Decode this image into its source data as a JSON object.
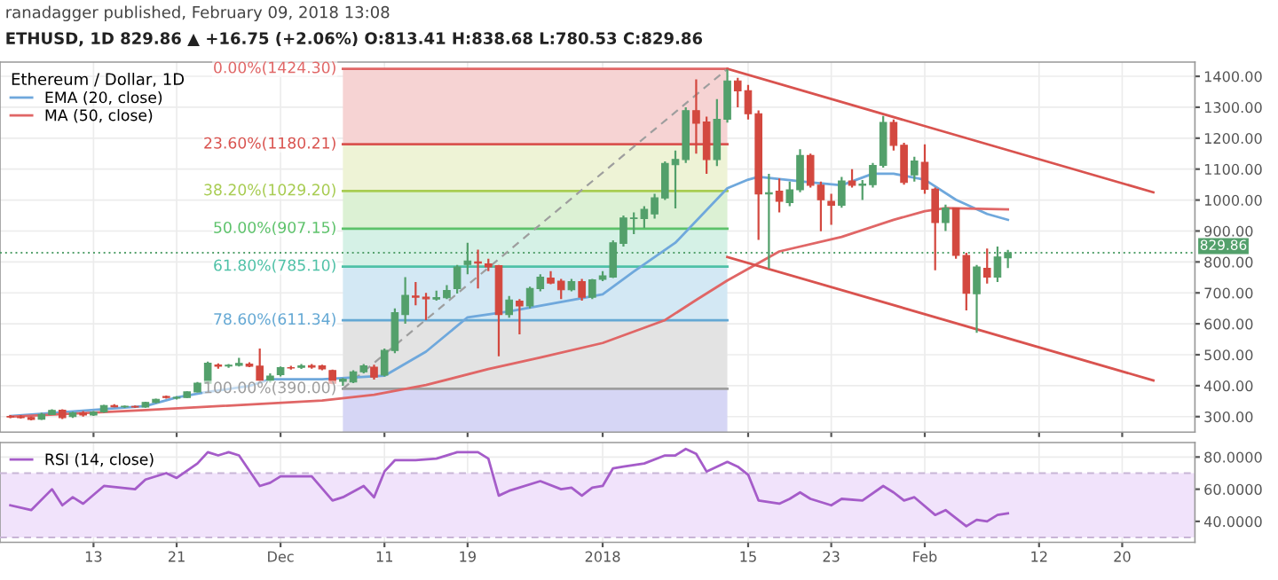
{
  "chart_data": [
    {
      "type": "candlestick",
      "title": "ranadagger published, February 09, 2018 13:08",
      "subtitle": "ETHUSD, 1D 829.86 ▲ +16.75 (+2.06%) O:813.41 H:838.68 L:780.53 C:829.86",
      "legend_title": "Ethereum / Dollar, 1D",
      "x": [
        "2017-11-05",
        "2017-11-06",
        "2017-11-07",
        "2017-11-08",
        "2017-11-09",
        "2017-11-10",
        "2017-11-11",
        "2017-11-12",
        "2017-11-13",
        "2017-11-14",
        "2017-11-15",
        "2017-11-16",
        "2017-11-17",
        "2017-11-18",
        "2017-11-19",
        "2017-11-20",
        "2017-11-21",
        "2017-11-22",
        "2017-11-23",
        "2017-11-24",
        "2017-11-25",
        "2017-11-26",
        "2017-11-27",
        "2017-11-28",
        "2017-11-29",
        "2017-11-30",
        "2017-12-01",
        "2017-12-02",
        "2017-12-03",
        "2017-12-04",
        "2017-12-05",
        "2017-12-06",
        "2017-12-07",
        "2017-12-08",
        "2017-12-09",
        "2017-12-10",
        "2017-12-11",
        "2017-12-12",
        "2017-12-13",
        "2017-12-14",
        "2017-12-15",
        "2017-12-16",
        "2017-12-17",
        "2017-12-18",
        "2017-12-19",
        "2017-12-20",
        "2017-12-21",
        "2017-12-22",
        "2017-12-23",
        "2017-12-24",
        "2017-12-25",
        "2017-12-26",
        "2017-12-27",
        "2017-12-28",
        "2017-12-29",
        "2017-12-30",
        "2017-12-31",
        "2018-01-01",
        "2018-01-02",
        "2018-01-03",
        "2018-01-04",
        "2018-01-05",
        "2018-01-06",
        "2018-01-07",
        "2018-01-08",
        "2018-01-09",
        "2018-01-10",
        "2018-01-11",
        "2018-01-12",
        "2018-01-13",
        "2018-01-14",
        "2018-01-15",
        "2018-01-16",
        "2018-01-17",
        "2018-01-18",
        "2018-01-19",
        "2018-01-20",
        "2018-01-21",
        "2018-01-22",
        "2018-01-23",
        "2018-01-24",
        "2018-01-25",
        "2018-01-26",
        "2018-01-27",
        "2018-01-28",
        "2018-01-29",
        "2018-01-30",
        "2018-01-31",
        "2018-02-01",
        "2018-02-02",
        "2018-02-03",
        "2018-02-04",
        "2018-02-05",
        "2018-02-06",
        "2018-02-07",
        "2018-02-08",
        "2018-02-09"
      ],
      "ohlc": [
        [
          300,
          305,
          295,
          299
        ],
        [
          299,
          305,
          294,
          297
        ],
        [
          297,
          300,
          288,
          291
        ],
        [
          292,
          312,
          289,
          307
        ],
        [
          307,
          324,
          305,
          320
        ],
        [
          321,
          324,
          292,
          297
        ],
        [
          300,
          316,
          296,
          312
        ],
        [
          312,
          318,
          300,
          305
        ],
        [
          305,
          318,
          302,
          314
        ],
        [
          315,
          338,
          312,
          336
        ],
        [
          336,
          340,
          330,
          332
        ],
        [
          332,
          336,
          328,
          333
        ],
        [
          333,
          336,
          328,
          331
        ],
        [
          331,
          348,
          329,
          346
        ],
        [
          346,
          358,
          343,
          356
        ],
        [
          365,
          368,
          358,
          362
        ],
        [
          360,
          366,
          355,
          362
        ],
        [
          362,
          382,
          360,
          380
        ],
        [
          380,
          412,
          378,
          408
        ],
        [
          408,
          478,
          405,
          473
        ],
        [
          467,
          472,
          455,
          463
        ],
        [
          464,
          470,
          458,
          466
        ],
        [
          466,
          490,
          462,
          472
        ],
        [
          470,
          476,
          460,
          463
        ],
        [
          463,
          520,
          415,
          417
        ],
        [
          417,
          440,
          410,
          431
        ],
        [
          436,
          462,
          430,
          458
        ],
        [
          458,
          464,
          452,
          457
        ],
        [
          459,
          470,
          454,
          464
        ],
        [
          465,
          470,
          455,
          460
        ],
        [
          464,
          468,
          450,
          454
        ],
        [
          449,
          452,
          405,
          408
        ],
        [
          414,
          425,
          400,
          421
        ],
        [
          412,
          450,
          408,
          445
        ],
        [
          445,
          470,
          440,
          464
        ],
        [
          460,
          468,
          420,
          428
        ],
        [
          434,
          520,
          430,
          514
        ],
        [
          514,
          650,
          505,
          636
        ],
        [
          630,
          751,
          600,
          692
        ],
        [
          690,
          735,
          660,
          686
        ],
        [
          686,
          700,
          612,
          681
        ],
        [
          680,
          707,
          675,
          685
        ],
        [
          684,
          725,
          680,
          708
        ],
        [
          714,
          790,
          698,
          784
        ],
        [
          792,
          862,
          760,
          803
        ],
        [
          800,
          840,
          714,
          796
        ],
        [
          794,
          810,
          770,
          784
        ],
        [
          788,
          790,
          495,
          630
        ],
        [
          630,
          690,
          620,
          677
        ],
        [
          673,
          680,
          566,
          658
        ],
        [
          658,
          720,
          650,
          714
        ],
        [
          714,
          760,
          705,
          751
        ],
        [
          748,
          770,
          728,
          732
        ],
        [
          738,
          745,
          680,
          710
        ],
        [
          710,
          745,
          705,
          736
        ],
        [
          736,
          745,
          675,
          686
        ],
        [
          686,
          745,
          680,
          742
        ],
        [
          744,
          770,
          738,
          755
        ],
        [
          751,
          870,
          748,
          862
        ],
        [
          860,
          950,
          850,
          942
        ],
        [
          940,
          960,
          890,
          942
        ],
        [
          940,
          980,
          910,
          970
        ],
        [
          955,
          1020,
          940,
          1007
        ],
        [
          1007,
          1125,
          1000,
          1118
        ],
        [
          1114,
          1160,
          973,
          1131
        ],
        [
          1131,
          1300,
          1120,
          1289
        ],
        [
          1289,
          1390,
          1150,
          1248
        ],
        [
          1252,
          1270,
          1085,
          1131
        ],
        [
          1131,
          1326,
          1110,
          1261
        ],
        [
          1261,
          1422,
          1250,
          1385
        ],
        [
          1385,
          1395,
          1300,
          1353
        ],
        [
          1353,
          1372,
          1260,
          1279
        ],
        [
          1279,
          1290,
          871,
          1020
        ],
        [
          1020,
          1085,
          779,
          1024
        ],
        [
          1029,
          1070,
          960,
          996
        ],
        [
          992,
          1060,
          980,
          1033
        ],
        [
          1033,
          1164,
          1025,
          1144
        ],
        [
          1144,
          1150,
          1040,
          1048
        ],
        [
          1048,
          1060,
          899,
          1001
        ],
        [
          996,
          1020,
          920,
          983
        ],
        [
          983,
          1075,
          975,
          1062
        ],
        [
          1062,
          1100,
          1040,
          1048
        ],
        [
          1048,
          1065,
          1000,
          1052
        ],
        [
          1050,
          1120,
          1040,
          1112
        ],
        [
          1112,
          1272,
          1105,
          1251
        ],
        [
          1251,
          1260,
          1160,
          1177
        ],
        [
          1177,
          1185,
          1050,
          1057
        ],
        [
          1081,
          1140,
          1060,
          1126
        ],
        [
          1122,
          1180,
          1020,
          1035
        ],
        [
          1035,
          1040,
          773,
          927
        ],
        [
          927,
          985,
          900,
          974
        ],
        [
          974,
          975,
          810,
          821
        ],
        [
          821,
          830,
          643,
          699
        ],
        [
          697,
          790,
          571,
          784
        ],
        [
          779,
          843,
          730,
          751
        ],
        [
          751,
          850,
          735,
          816
        ],
        [
          813.41,
          838.68,
          780.53,
          829.86
        ]
      ],
      "colors": [
        "#d3483f",
        "#d3483f",
        "#d3483f",
        "#53a06b",
        "#53a06b",
        "#d3483f",
        "#53a06b",
        "#d3483f",
        "#53a06b",
        "#53a06b",
        "#d3483f",
        "#53a06b",
        "#d3483f",
        "#53a06b",
        "#53a06b",
        "#d3483f",
        "#53a06b",
        "#53a06b",
        "#53a06b",
        "#53a06b",
        "#d3483f",
        "#53a06b",
        "#53a06b",
        "#d3483f",
        "#d3483f",
        "#53a06b",
        "#53a06b",
        "#d3483f",
        "#53a06b",
        "#d3483f",
        "#d3483f",
        "#d3483f",
        "#53a06b",
        "#53a06b",
        "#53a06b",
        "#d3483f",
        "#53a06b",
        "#53a06b",
        "#53a06b",
        "#d3483f",
        "#d3483f",
        "#53a06b",
        "#53a06b",
        "#53a06b",
        "#53a06b",
        "#d3483f",
        "#d3483f",
        "#d3483f",
        "#53a06b",
        "#d3483f",
        "#53a06b",
        "#53a06b",
        "#d3483f",
        "#d3483f",
        "#53a06b",
        "#d3483f",
        "#53a06b",
        "#53a06b",
        "#53a06b",
        "#53a06b",
        "#53a06b",
        "#53a06b",
        "#53a06b",
        "#53a06b",
        "#53a06b",
        "#53a06b",
        "#d3483f",
        "#d3483f",
        "#53a06b",
        "#53a06b",
        "#d3483f",
        "#d3483f",
        "#d3483f",
        "#53a06b",
        "#d3483f",
        "#53a06b",
        "#53a06b",
        "#d3483f",
        "#d3483f",
        "#d3483f",
        "#53a06b",
        "#d3483f",
        "#53a06b",
        "#53a06b",
        "#53a06b",
        "#d3483f",
        "#d3483f",
        "#53a06b",
        "#d3483f",
        "#d3483f",
        "#53a06b",
        "#d3483f",
        "#d3483f",
        "#53a06b",
        "#d3483f",
        "#53a06b",
        "#53a06b"
      ],
      "series": [
        {
          "type": "line",
          "name": "EMA (20, close)",
          "color": "#6fa8dc",
          "x": [
            "2017-11-05",
            "2017-11-18",
            "2017-11-21",
            "2017-11-24",
            "2017-11-28",
            "2017-11-30",
            "2017-12-05",
            "2017-12-11",
            "2017-12-15",
            "2017-12-19",
            "2017-12-23",
            "2017-12-29",
            "2018-01-01",
            "2018-01-04",
            "2018-01-08",
            "2018-01-13",
            "2018-01-15",
            "2018-01-16",
            "2018-01-21",
            "2018-01-24",
            "2018-01-27",
            "2018-01-29",
            "2018-02-01",
            "2018-02-04",
            "2018-02-07",
            "2018-02-09"
          ],
          "values": [
            302,
            334,
            362,
            380,
            399,
            421,
            421,
            432,
            510,
            621,
            640,
            677,
            695,
            769,
            862,
            1038,
            1066,
            1075,
            1057,
            1048,
            1085,
            1085,
            1066,
            1001,
            955,
            936
          ]
        },
        {
          "type": "line",
          "name": "MA (50, close)",
          "color": "#e06666",
          "x": [
            "2017-11-05",
            "2017-11-18",
            "2017-12-05",
            "2017-12-10",
            "2017-12-15",
            "2017-12-21",
            "2017-12-26",
            "2018-01-01",
            "2018-01-07",
            "2018-01-10",
            "2018-01-13",
            "2018-01-18",
            "2018-01-24",
            "2018-01-29",
            "2018-02-01",
            "2018-02-03",
            "2018-02-09"
          ],
          "values": [
            300,
            321,
            352,
            371,
            402,
            454,
            491,
            538,
            612,
            677,
            740,
            834,
            881,
            936,
            964,
            974,
            970
          ]
        },
        {
          "type": "line",
          "color": "#d9534f",
          "x": [
            "2018-01-13",
            "2018-02-23"
          ],
          "values": [
            1424,
            1025
          ]
        },
        {
          "type": "line",
          "color": "#d9534f",
          "x": [
            "2018-01-13",
            "2018-02-23"
          ],
          "values": [
            816,
            417
          ]
        },
        {
          "type": "line",
          "color": "#9e9e9e",
          "line_style": "dashed",
          "x": [
            "2017-12-07",
            "2018-01-13"
          ],
          "values": [
            390,
            1424
          ]
        }
      ],
      "bands": [
        {
          "axis": "y",
          "from": 1180.21,
          "to": 1424.3,
          "color": "#f6d3d3"
        },
        {
          "axis": "y",
          "from": 1029.2,
          "to": 1180.21,
          "color": "#eef3d6"
        },
        {
          "axis": "y",
          "from": 907.15,
          "to": 1029.2,
          "color": "#dcf1d4"
        },
        {
          "axis": "y",
          "from": 785.1,
          "to": 907.15,
          "color": "#d5f1e6"
        },
        {
          "axis": "y",
          "from": 611.34,
          "to": 785.1,
          "color": "#d3e8f4"
        },
        {
          "axis": "y",
          "from": 390,
          "to": 611.34,
          "color": "#e3e3e3"
        },
        {
          "axis": "y",
          "from": 250,
          "to": 390,
          "color": "#d6d6f5"
        }
      ],
      "ref_lines": [
        {
          "axis": "y",
          "value": 1424.3,
          "label": "0.00%(1424.30)",
          "color": "#e06666"
        },
        {
          "axis": "y",
          "value": 1180.21,
          "label": "23.60%(1180.21)",
          "color": "#d9534f"
        },
        {
          "axis": "y",
          "value": 1029.2,
          "label": "38.20%(1029.20)",
          "color": "#a8cc52"
        },
        {
          "axis": "y",
          "value": 907.15,
          "label": "50.00%(907.15)",
          "color": "#5cc26a"
        },
        {
          "axis": "y",
          "value": 785.1,
          "label": "61.80%(785.10)",
          "color": "#4fc1a7"
        },
        {
          "axis": "y",
          "value": 611.34,
          "label": "78.60%(611.34)",
          "color": "#64a8d4"
        },
        {
          "axis": "y",
          "value": 390,
          "label": "100.00%(390.00)",
          "color": "#9e9e9e"
        },
        {
          "axis": "y",
          "value": 829.86,
          "label": "829.86",
          "color": "#53a06b",
          "line_style": "dotted"
        }
      ],
      "xlim": [
        "2017-11-04",
        "2018-02-27"
      ],
      "xticks": [
        {
          "value": "2017-11-13",
          "label": null
        },
        {
          "value": "2017-11-21",
          "label": null
        },
        {
          "value": "2017-12-01",
          "label": null
        },
        {
          "value": "2017-12-11",
          "label": null
        },
        {
          "value": "2017-12-19",
          "label": null
        },
        {
          "value": "2018-01-01",
          "label": null
        },
        {
          "value": "2018-01-15",
          "label": null
        },
        {
          "value": "2018-01-23",
          "label": null
        },
        {
          "value": "2018-02-01",
          "label": null
        },
        {
          "value": "2018-02-12",
          "label": null
        },
        {
          "value": "2018-02-20",
          "label": null
        }
      ],
      "ylim": [
        250,
        1446
      ],
      "yticks": [
        {
          "value": 300,
          "label": "300.00"
        },
        {
          "value": 400,
          "label": "400.00"
        },
        {
          "value": 500,
          "label": "500.00"
        },
        {
          "value": 600,
          "label": "600.00"
        },
        {
          "value": 700,
          "label": "700.00"
        },
        {
          "value": 800,
          "label": "800.00"
        },
        {
          "value": 900,
          "label": "900.00"
        },
        {
          "value": 1000,
          "label": "1000.00"
        },
        {
          "value": 1100,
          "label": "1100.00"
        },
        {
          "value": 1200,
          "label": "1200.00"
        },
        {
          "value": 1300,
          "label": "1300.00"
        },
        {
          "value": 1400,
          "label": "1400.00"
        }
      ],
      "tick_labels": "y",
      "grid": true,
      "legend": "top left"
    },
    {
      "type": "line",
      "series": [
        {
          "name": "RSI (14, close)",
          "color": "#a55cc9",
          "x": [
            "2017-11-05",
            "2017-11-07",
            "2017-11-09",
            "2017-11-10",
            "2017-11-11",
            "2017-11-12",
            "2017-11-14",
            "2017-11-17",
            "2017-11-18",
            "2017-11-20",
            "2017-11-21",
            "2017-11-23",
            "2017-11-24",
            "2017-11-25",
            "2017-11-26",
            "2017-11-27",
            "2017-11-29",
            "2017-11-30",
            "2017-12-01",
            "2017-12-04",
            "2017-12-06",
            "2017-12-07",
            "2017-12-09",
            "2017-12-10",
            "2017-12-11",
            "2017-12-12",
            "2017-12-14",
            "2017-12-16",
            "2017-12-18",
            "2017-12-20",
            "2017-12-21",
            "2017-12-22",
            "2017-12-23",
            "2017-12-26",
            "2017-12-28",
            "2017-12-29",
            "2017-12-30",
            "2017-12-31",
            "2018-01-01",
            "2018-01-02",
            "2018-01-03",
            "2018-01-05",
            "2018-01-07",
            "2018-01-08",
            "2018-01-09",
            "2018-01-10",
            "2018-01-11",
            "2018-01-13",
            "2018-01-14",
            "2018-01-15",
            "2018-01-16",
            "2018-01-18",
            "2018-01-19",
            "2018-01-20",
            "2018-01-21",
            "2018-01-23",
            "2018-01-24",
            "2018-01-26",
            "2018-01-28",
            "2018-01-29",
            "2018-01-30",
            "2018-01-31",
            "2018-02-02",
            "2018-02-03",
            "2018-02-05",
            "2018-02-06",
            "2018-02-07",
            "2018-02-08",
            "2018-02-09"
          ],
          "values": [
            50,
            47,
            60,
            50,
            55,
            51,
            62,
            60,
            66,
            70,
            67,
            76,
            83,
            81,
            83,
            81,
            62,
            64,
            68,
            68,
            53,
            55,
            62,
            55,
            71,
            78,
            78,
            79,
            83,
            83,
            79,
            56,
            59,
            65,
            60,
            61,
            56,
            61,
            62,
            73,
            74,
            76,
            81,
            81,
            85,
            82,
            71,
            77,
            74,
            69,
            53,
            51,
            54,
            58,
            54,
            50,
            54,
            53,
            62,
            58,
            53,
            55,
            44,
            47,
            37,
            41,
            40,
            44,
            45
          ]
        }
      ],
      "bands": [
        {
          "axis": "y",
          "from": 30,
          "to": 70,
          "color": "#f1e3fb"
        }
      ],
      "ref_lines": [
        {
          "axis": "y",
          "value": 70,
          "color": "#c8b5d6",
          "line_style": "dashed"
        },
        {
          "axis": "y",
          "value": 30,
          "color": "#c8b5d6",
          "line_style": "dashed"
        }
      ],
      "xlim": [
        "2017-11-04",
        "2018-02-27"
      ],
      "xticks": [
        {
          "value": "2017-11-13",
          "label": "13"
        },
        {
          "value": "2017-11-21",
          "label": "21"
        },
        {
          "value": "2017-12-01",
          "label": "Dec"
        },
        {
          "value": "2017-12-11",
          "label": "11"
        },
        {
          "value": "2017-12-19",
          "label": "19"
        },
        {
          "value": "2018-01-01",
          "label": "2018"
        },
        {
          "value": "2018-01-15",
          "label": "15"
        },
        {
          "value": "2018-01-23",
          "label": "23"
        },
        {
          "value": "2018-02-01",
          "label": "Feb"
        },
        {
          "value": "2018-02-12",
          "label": "12"
        },
        {
          "value": "2018-02-20",
          "label": "20"
        }
      ],
      "ylim": [
        27,
        89
      ],
      "yticks": [
        {
          "value": 40,
          "label": "40.0000"
        },
        {
          "value": 60,
          "label": "60.0000"
        },
        {
          "value": 80,
          "label": "80.0000"
        }
      ],
      "grid": true,
      "legend": "top left"
    }
  ]
}
